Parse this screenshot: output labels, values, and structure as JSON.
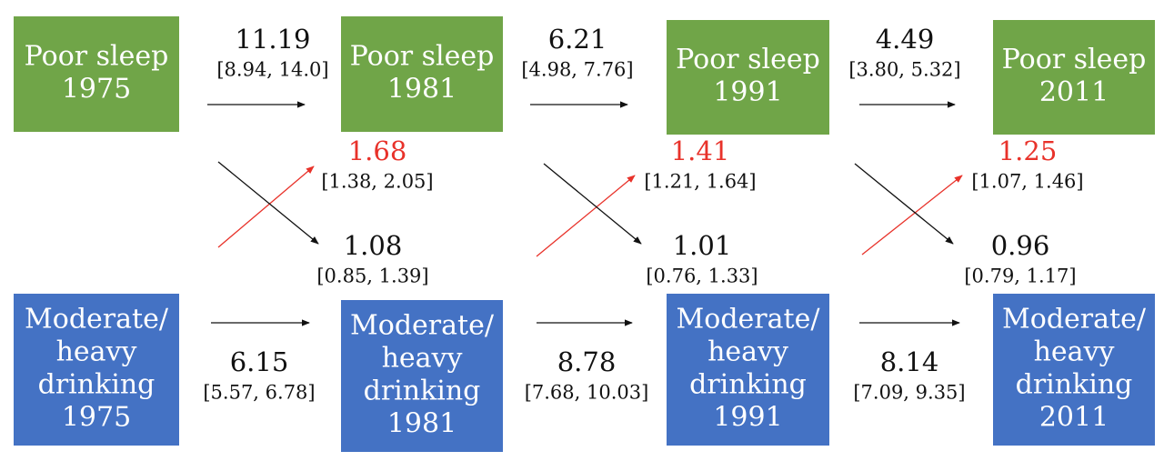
{
  "nodes": [
    {
      "lines": [
        "Poor sleep",
        "1975"
      ]
    },
    {
      "lines": [
        "Poor sleep",
        "1981"
      ]
    },
    {
      "lines": [
        "Poor sleep",
        "1991"
      ]
    },
    {
      "lines": [
        "Poor sleep",
        "2011"
      ]
    },
    {
      "lines": [
        "Moderate/",
        "heavy",
        "drinking",
        "1975"
      ]
    },
    {
      "lines": [
        "Moderate/",
        "heavy",
        "drinking",
        "1981"
      ]
    },
    {
      "lines": [
        "Moderate/",
        "heavy",
        "drinking",
        "1991"
      ]
    },
    {
      "lines": [
        "Moderate/",
        "heavy",
        "drinking",
        "2011"
      ]
    }
  ],
  "edges": [
    {
      "estimate": 11.19,
      "ci": "[8.94, 14.0]"
    },
    {
      "estimate": 6.21,
      "ci": "[4.98, 7.76]"
    },
    {
      "estimate": 4.49,
      "ci": "[3.80, 5.32]"
    },
    {
      "estimate": 6.15,
      "ci": "[5.57, 6.78]"
    },
    {
      "estimate": 8.78,
      "ci": "[7.68, 10.03]"
    },
    {
      "estimate": 8.14,
      "ci": "[7.09, 9.35]"
    },
    {
      "estimate": 1.68,
      "ci": "[1.38, 2.05]"
    },
    {
      "estimate": 1.41,
      "ci": "[1.21, 1.64]"
    },
    {
      "estimate": 1.25,
      "ci": "[1.07, 1.46]"
    },
    {
      "estimate": 1.08,
      "ci": "[0.85, 1.39]"
    },
    {
      "estimate": 1.01,
      "ci": "[0.76, 1.33]"
    },
    {
      "estimate": 0.96,
      "ci": "[0.79, 1.17]"
    }
  ]
}
